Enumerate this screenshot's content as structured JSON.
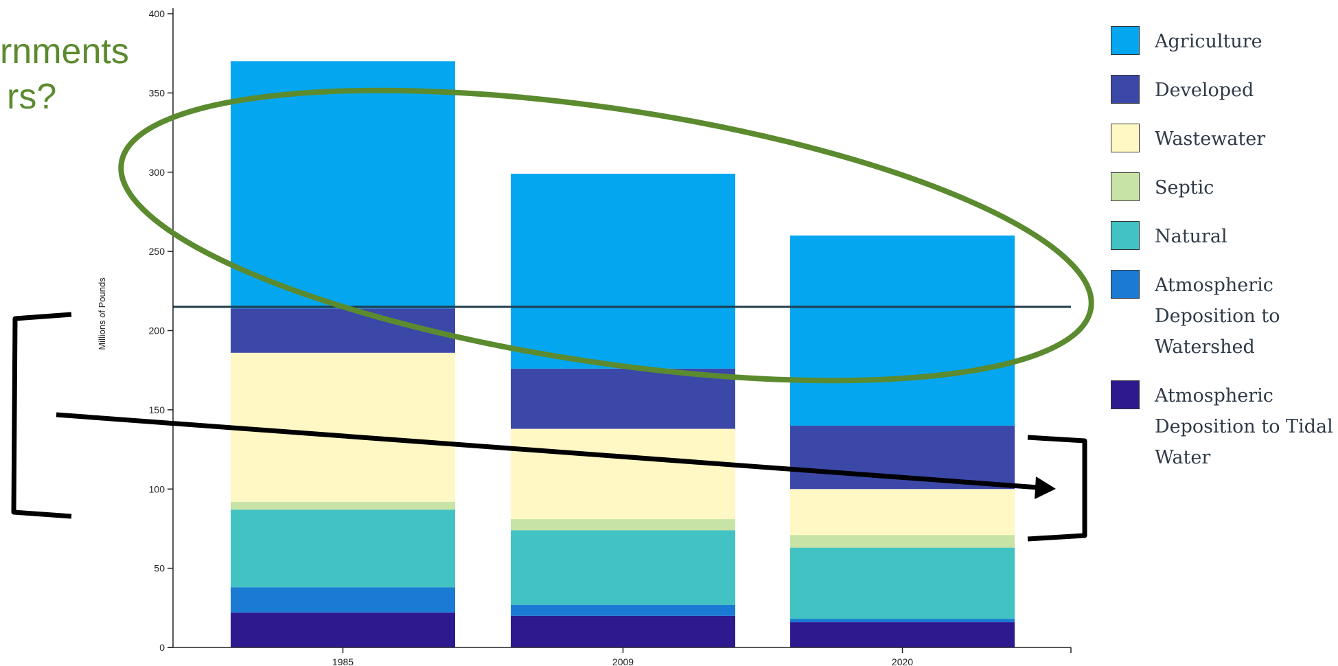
{
  "partial_title": {
    "line1": "rnments",
    "line2": "rs?"
  },
  "chart_data": {
    "type": "bar",
    "stacked": true,
    "categories": [
      "1985",
      "2009",
      "2020"
    ],
    "ylabel": "Millions of Pounds",
    "ylim": [
      0,
      400
    ],
    "yticks": [
      0,
      50,
      100,
      150,
      200,
      250,
      300,
      350,
      400
    ],
    "grid": false,
    "legend_position": "right",
    "series": [
      {
        "name": "Atmospheric Deposition to Tidal Water",
        "color": "#2e1a8e",
        "values": [
          22,
          20,
          16
        ]
      },
      {
        "name": "Atmospheric Deposition to Watershed",
        "color": "#1a7ad4",
        "values": [
          16,
          7,
          2
        ]
      },
      {
        "name": "Natural",
        "color": "#42c2c2",
        "values": [
          49,
          47,
          45
        ]
      },
      {
        "name": "Septic",
        "color": "#c7e3a5",
        "values": [
          5,
          7,
          8
        ]
      },
      {
        "name": "Wastewater",
        "color": "#fff8c4",
        "values": [
          94,
          57,
          29
        ]
      },
      {
        "name": "Developed",
        "color": "#3b48a8",
        "values": [
          28,
          38,
          40
        ]
      },
      {
        "name": "Agriculture",
        "color": "#05a6f0",
        "values": [
          156,
          123,
          120
        ]
      }
    ],
    "reference_line": {
      "y": 215,
      "color": "#1e3c4b"
    }
  }
}
